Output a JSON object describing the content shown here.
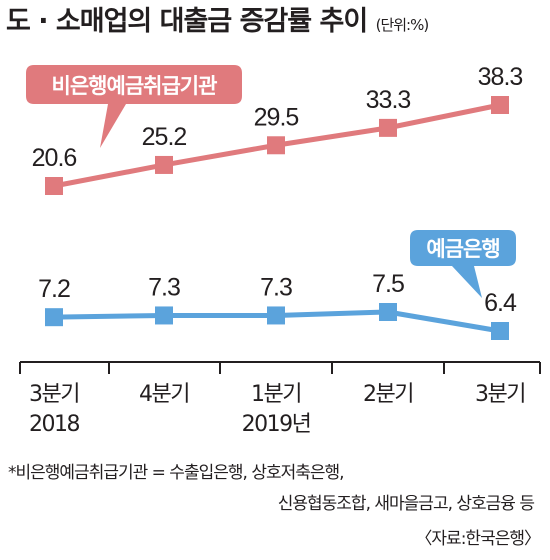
{
  "title": "도 · 소매업의 대출금 증감률 추이",
  "unit": "(단위:%)",
  "chart_data": {
    "type": "line",
    "categories": [
      [
        "3분기",
        "2018"
      ],
      [
        "4분기",
        ""
      ],
      [
        "1분기",
        "2019년"
      ],
      [
        "2분기",
        ""
      ],
      [
        "3분기",
        ""
      ]
    ],
    "series": [
      {
        "name": "비은행예금취급기관",
        "values": [
          20.6,
          25.2,
          29.5,
          33.3,
          38.3
        ],
        "color": "#e07a7d",
        "label_color": "#ffffff"
      },
      {
        "name": "예금은행",
        "values": [
          7.2,
          7.3,
          7.3,
          7.5,
          6.4
        ],
        "color": "#5ba3dc",
        "label_color": "#ffffff"
      }
    ],
    "value_labels": [
      [
        "20.6",
        "25.2",
        "29.5",
        "33.3",
        "38.3"
      ],
      [
        "7.2",
        "7.3",
        "7.3",
        "7.5",
        "6.4"
      ]
    ]
  },
  "footnote": {
    "line1": "*비은행예금취급기관 = 수출입은행, 상호저축은행,",
    "line2": "신용협동조합, 새마을금고, 상호금융 등"
  },
  "source": "〈자료:한국은행〉"
}
